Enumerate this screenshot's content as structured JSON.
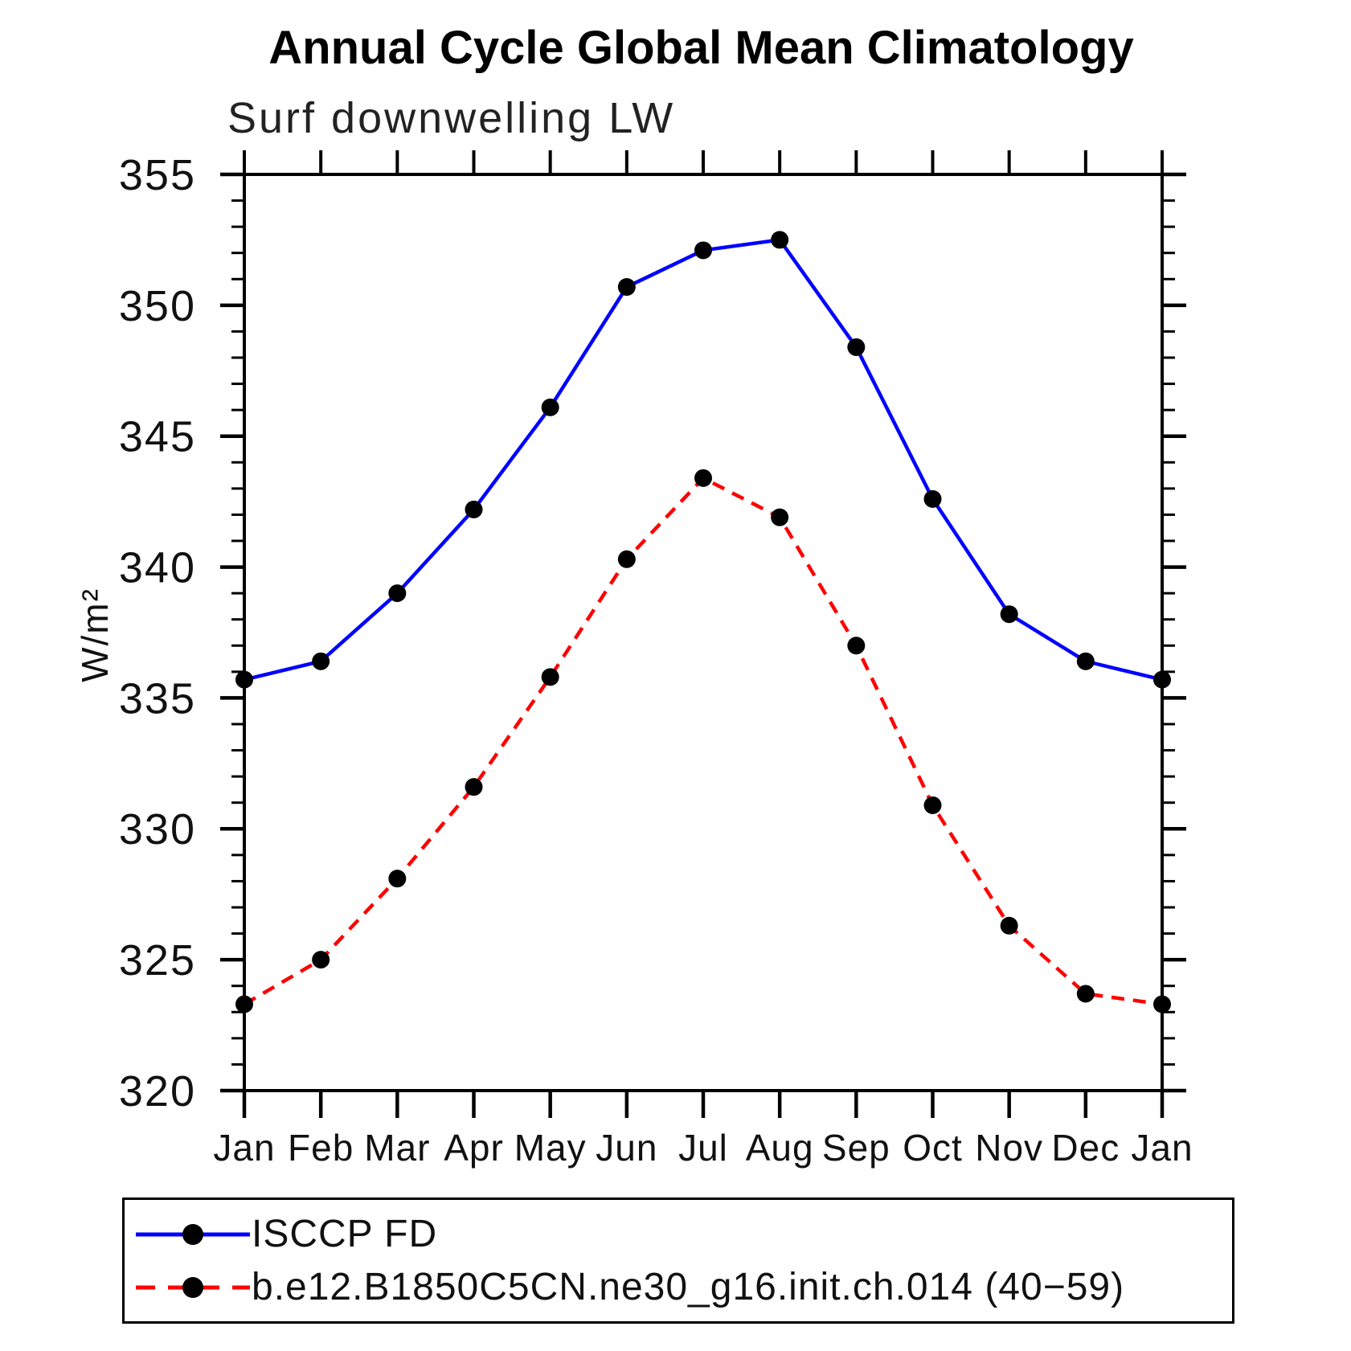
{
  "title": "Annual Cycle Global Mean Climatology",
  "subtitle": "Surf downwelling LW",
  "ylabel": "W/m²",
  "chart_data": {
    "type": "line",
    "categories": [
      "Jan",
      "Feb",
      "Mar",
      "Apr",
      "May",
      "Jun",
      "Jul",
      "Aug",
      "Sep",
      "Oct",
      "Nov",
      "Dec",
      "Jan"
    ],
    "xlabel": "",
    "ylabel": "W/m²",
    "ylim": [
      320,
      355
    ],
    "ytick_labels": [
      "320",
      "325",
      "330",
      "335",
      "340",
      "345",
      "350",
      "355"
    ],
    "ytick_major_step": 5,
    "ytick_minor_step": 1,
    "grid": false,
    "legend_position": "bottom",
    "series": [
      {
        "name": "ISCCP FD",
        "color": "#0000ff",
        "style": "solid",
        "marker": "circle",
        "marker_color": "#000000",
        "values": [
          335.7,
          336.4,
          339.0,
          342.2,
          346.1,
          350.7,
          352.1,
          352.5,
          348.4,
          342.6,
          338.2,
          336.4,
          335.7
        ]
      },
      {
        "name": "b.e12.B1850C5CN.ne30_g16.init.ch.014 (40−59)",
        "color": "#ff0000",
        "style": "dashed",
        "marker": "circle",
        "marker_color": "#000000",
        "values": [
          323.3,
          325.0,
          328.1,
          331.6,
          335.8,
          340.3,
          343.4,
          341.9,
          337.0,
          330.9,
          326.3,
          323.7,
          323.3
        ]
      }
    ]
  }
}
